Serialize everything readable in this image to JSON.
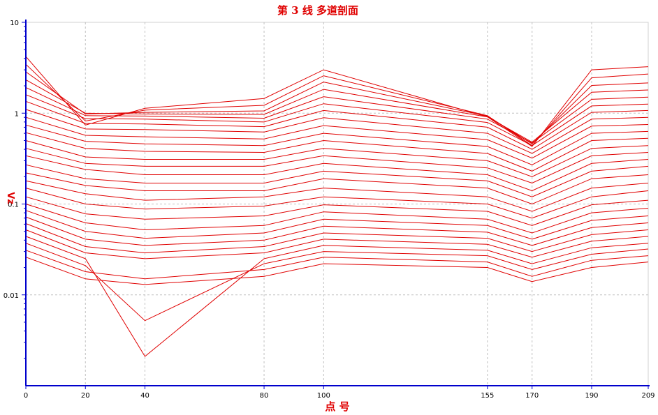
{
  "chart_data": {
    "type": "line",
    "title": "第 3 线   多道剖面",
    "xlabel": "点 号",
    "ylabel": "Vz",
    "yscale": "log",
    "xlim": [
      0,
      209
    ],
    "ylim": [
      0.001,
      10
    ],
    "grid": true,
    "x": [
      0,
      20,
      40,
      80,
      100,
      155,
      170,
      190,
      209
    ],
    "x_tick_labels": [
      "0",
      "20",
      "40",
      "80",
      "100",
      "155",
      "170",
      "190",
      "209"
    ],
    "y_ticks": [
      0.01,
      0.1,
      1,
      10
    ],
    "y_tick_labels": [
      "0.01",
      "0.1",
      "1",
      "10"
    ],
    "line_color": "#e00000",
    "axis_color": "#0000cc",
    "grid_color": "#c0c0c0",
    "series": [
      {
        "values": [
          4.2,
          0.74,
          1.13,
          1.45,
          3.0,
          0.91,
          0.43,
          3.0,
          3.25
        ]
      },
      {
        "values": [
          3.45,
          0.82,
          1.08,
          1.22,
          2.58,
          0.94,
          0.44,
          2.45,
          2.7
        ]
      },
      {
        "values": [
          2.85,
          0.98,
          1.02,
          1.06,
          2.2,
          0.93,
          0.46,
          2.02,
          2.15
        ]
      },
      {
        "values": [
          2.33,
          1.0,
          0.98,
          0.97,
          1.83,
          0.91,
          0.48,
          1.7,
          1.8
        ]
      },
      {
        "values": [
          1.92,
          0.94,
          0.93,
          0.88,
          1.52,
          0.86,
          0.47,
          1.42,
          1.5
        ]
      },
      {
        "values": [
          1.6,
          0.87,
          0.86,
          0.8,
          1.27,
          0.79,
          0.44,
          1.2,
          1.26
        ]
      },
      {
        "values": [
          1.35,
          0.77,
          0.76,
          0.71,
          1.07,
          0.7,
          0.4,
          1.02,
          1.07
        ]
      },
      {
        "values": [
          1.1,
          0.67,
          0.66,
          0.62,
          0.89,
          0.6,
          0.36,
          0.86,
          0.9
        ]
      },
      {
        "values": [
          0.9,
          0.57,
          0.55,
          0.52,
          0.73,
          0.51,
          0.32,
          0.72,
          0.75
        ]
      },
      {
        "values": [
          0.74,
          0.49,
          0.46,
          0.44,
          0.6,
          0.43,
          0.27,
          0.6,
          0.63
        ]
      },
      {
        "values": [
          0.61,
          0.41,
          0.38,
          0.37,
          0.5,
          0.36,
          0.23,
          0.5,
          0.53
        ]
      },
      {
        "values": [
          0.5,
          0.33,
          0.31,
          0.31,
          0.41,
          0.3,
          0.2,
          0.41,
          0.44
        ]
      },
      {
        "values": [
          0.41,
          0.28,
          0.26,
          0.26,
          0.34,
          0.25,
          0.17,
          0.34,
          0.37
        ]
      },
      {
        "values": [
          0.34,
          0.24,
          0.21,
          0.21,
          0.28,
          0.21,
          0.14,
          0.28,
          0.31
        ]
      },
      {
        "values": [
          0.27,
          0.19,
          0.17,
          0.17,
          0.23,
          0.18,
          0.12,
          0.23,
          0.26
        ]
      },
      {
        "values": [
          0.22,
          0.16,
          0.14,
          0.14,
          0.19,
          0.15,
          0.1,
          0.19,
          0.21
        ]
      },
      {
        "values": [
          0.18,
          0.13,
          0.11,
          0.12,
          0.15,
          0.12,
          0.083,
          0.15,
          0.17
        ]
      },
      {
        "values": [
          0.15,
          0.1,
          0.088,
          0.095,
          0.12,
          0.1,
          0.07,
          0.12,
          0.14
        ]
      },
      {
        "values": [
          0.12,
          0.078,
          0.068,
          0.074,
          0.098,
          0.083,
          0.058,
          0.098,
          0.11
        ]
      },
      {
        "values": [
          0.1,
          0.062,
          0.052,
          0.058,
          0.082,
          0.068,
          0.048,
          0.08,
          0.09
        ]
      },
      {
        "values": [
          0.085,
          0.05,
          0.042,
          0.048,
          0.068,
          0.058,
          0.041,
          0.066,
          0.074
        ]
      },
      {
        "values": [
          0.072,
          0.041,
          0.035,
          0.04,
          0.057,
          0.049,
          0.035,
          0.055,
          0.062
        ]
      },
      {
        "values": [
          0.061,
          0.034,
          0.029,
          0.034,
          0.048,
          0.042,
          0.03,
          0.046,
          0.052
        ]
      },
      {
        "values": [
          0.052,
          0.029,
          0.025,
          0.029,
          0.041,
          0.036,
          0.026,
          0.039,
          0.044
        ]
      },
      {
        "values": [
          0.044,
          0.025,
          0.0021,
          0.025,
          0.035,
          0.031,
          0.022,
          0.033,
          0.037
        ]
      },
      {
        "values": [
          0.037,
          0.021,
          0.0052,
          0.022,
          0.03,
          0.027,
          0.019,
          0.028,
          0.032
        ]
      },
      {
        "values": [
          0.031,
          0.018,
          0.015,
          0.019,
          0.026,
          0.023,
          0.016,
          0.024,
          0.027
        ]
      },
      {
        "values": [
          0.026,
          0.015,
          0.013,
          0.016,
          0.022,
          0.02,
          0.014,
          0.02,
          0.023
        ]
      }
    ]
  }
}
